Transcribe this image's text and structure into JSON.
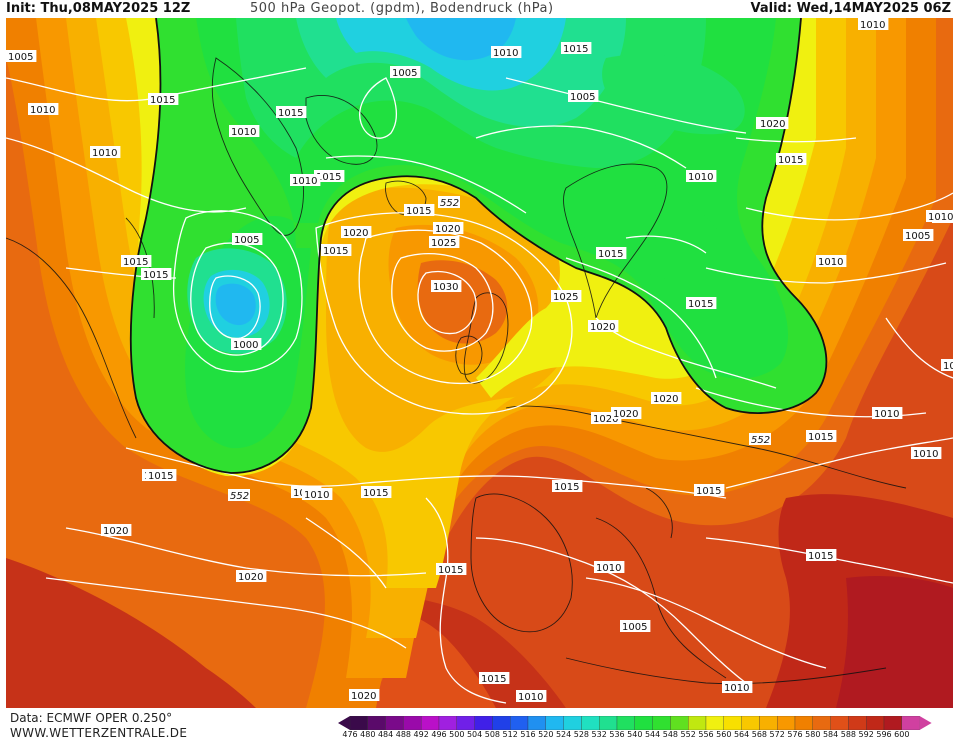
{
  "header": {
    "init": "Init: Thu,08MAY2025 12Z",
    "title": "500 hPa Geopot. (gpdm), Bodendruck (hPa)",
    "valid": "Valid: Wed,14MAY2025 06Z"
  },
  "footer": {
    "data_source": "Data: ECMWF OPER 0.250°",
    "website": "WWW.WETTERZENTRALE.DE"
  },
  "color_scale": {
    "values": [
      "476",
      "480",
      "484",
      "488",
      "492",
      "496",
      "500",
      "504",
      "508",
      "512",
      "516",
      "520",
      "524",
      "528",
      "532",
      "536",
      "540",
      "544",
      "548",
      "552",
      "556",
      "560",
      "564",
      "568",
      "572",
      "576",
      "580",
      "584",
      "588",
      "592",
      "596",
      "600"
    ],
    "colors": [
      "#3a0a4a",
      "#5a0a6a",
      "#7a0a8a",
      "#9a0aaa",
      "#ba10c8",
      "#a020e0",
      "#7020e8",
      "#4020e8",
      "#2040e8",
      "#2060f0",
      "#2090f0",
      "#20b8f0",
      "#20d0e0",
      "#20e0c0",
      "#20e090",
      "#20e060",
      "#20e040",
      "#30e030",
      "#60e020",
      "#c0e810",
      "#f0f010",
      "#f8e000",
      "#f8c800",
      "#f8b000",
      "#f89800",
      "#f08000",
      "#e86a10",
      "#e05018",
      "#d03a18",
      "#c02818",
      "#b01a20",
      "#d040a0"
    ]
  },
  "map": {
    "contour_labels": [
      {
        "text": "1005"
      },
      {
        "text": "1010"
      },
      {
        "text": "1010"
      },
      {
        "text": "1015"
      },
      {
        "text": "1015"
      },
      {
        "text": "1010"
      },
      {
        "text": "1015"
      },
      {
        "text": "1015"
      },
      {
        "text": "1010"
      },
      {
        "text": "1015"
      },
      {
        "text": "1015"
      },
      {
        "text": "1020"
      },
      {
        "text": "1020"
      },
      {
        "text": "1015"
      },
      {
        "text": "1010"
      },
      {
        "text": "1015"
      },
      {
        "text": "1005"
      },
      {
        "text": "1010"
      },
      {
        "text": "1015"
      },
      {
        "text": "1005"
      },
      {
        "text": "1020"
      },
      {
        "text": "1015"
      },
      {
        "text": "1010"
      },
      {
        "text": "1015"
      },
      {
        "text": "1005"
      },
      {
        "text": "1000"
      },
      {
        "text": "1020"
      },
      {
        "text": "1025"
      },
      {
        "text": "1030"
      },
      {
        "text": "1025"
      },
      {
        "text": "1020"
      },
      {
        "text": "1015"
      },
      {
        "text": "1015"
      },
      {
        "text": "1010"
      },
      {
        "text": "1010"
      },
      {
        "text": "1005"
      },
      {
        "text": "1010"
      },
      {
        "text": "1010"
      },
      {
        "text": "1020"
      },
      {
        "text": "1020"
      },
      {
        "text": "1015"
      },
      {
        "text": "1015"
      },
      {
        "text": "1015"
      },
      {
        "text": "1010"
      },
      {
        "text": "1015"
      },
      {
        "text": "1020"
      },
      {
        "text": "1020"
      },
      {
        "text": "1015"
      },
      {
        "text": "1010"
      },
      {
        "text": "1015"
      },
      {
        "text": "1005"
      },
      {
        "text": "1015"
      },
      {
        "text": "1010"
      },
      {
        "text": "1020"
      },
      {
        "text": "1010"
      },
      {
        "text": "1010"
      },
      {
        "text": "1010"
      },
      {
        "text": "1010"
      },
      {
        "text": "1020"
      }
    ],
    "isohypse_labels": [
      "552",
      "552",
      "552"
    ]
  }
}
